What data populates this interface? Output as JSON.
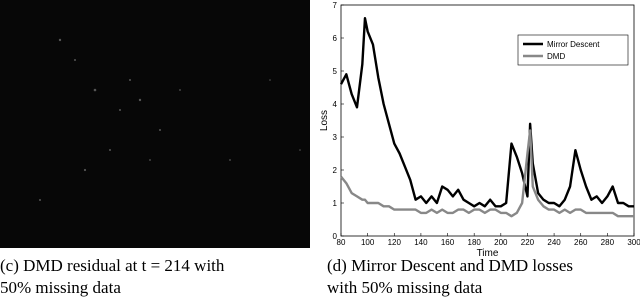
{
  "captions": {
    "left": [
      "(c) DMD residual at t = 214 with",
      "50% missing data"
    ],
    "right": [
      "(d) Mirror Descent and DMD losses",
      "with 50% missing data"
    ]
  },
  "chart_data": {
    "type": "line",
    "xlabel": "Time",
    "ylabel": "Loss",
    "x": [
      80,
      84,
      88,
      92,
      96,
      98,
      100,
      104,
      108,
      112,
      116,
      120,
      124,
      128,
      132,
      136,
      140,
      144,
      148,
      152,
      156,
      160,
      164,
      168,
      172,
      176,
      180,
      184,
      188,
      192,
      196,
      200,
      204,
      208,
      212,
      216,
      220,
      222,
      224,
      228,
      232,
      236,
      240,
      244,
      248,
      252,
      256,
      260,
      264,
      268,
      272,
      276,
      280,
      284,
      288,
      292,
      296,
      300
    ],
    "series": [
      {
        "name": "Mirror Descent",
        "color": "#000000",
        "values": [
          4.6,
          4.9,
          4.3,
          3.9,
          5.2,
          6.6,
          6.2,
          5.8,
          4.8,
          4.0,
          3.4,
          2.8,
          2.5,
          2.1,
          1.7,
          1.1,
          1.2,
          1.0,
          1.2,
          1.0,
          1.5,
          1.4,
          1.2,
          1.4,
          1.1,
          1.0,
          0.9,
          1.0,
          0.9,
          1.1,
          0.9,
          0.9,
          1.0,
          2.8,
          2.4,
          1.9,
          1.2,
          3.4,
          2.2,
          1.3,
          1.1,
          1.0,
          1.0,
          0.9,
          1.1,
          1.5,
          2.6,
          2.0,
          1.5,
          1.1,
          1.2,
          1.0,
          1.2,
          1.5,
          1.0,
          1.0,
          0.9,
          0.9
        ]
      },
      {
        "name": "DMD",
        "color": "#888888",
        "values": [
          1.8,
          1.6,
          1.3,
          1.2,
          1.1,
          1.1,
          1.0,
          1.0,
          1.0,
          0.9,
          0.9,
          0.8,
          0.8,
          0.8,
          0.8,
          0.8,
          0.7,
          0.7,
          0.8,
          0.7,
          0.8,
          0.7,
          0.7,
          0.8,
          0.8,
          0.7,
          0.8,
          0.8,
          0.7,
          0.8,
          0.8,
          0.7,
          0.7,
          0.6,
          0.7,
          1.0,
          2.5,
          3.2,
          1.5,
          1.1,
          0.9,
          0.8,
          0.8,
          0.7,
          0.8,
          0.7,
          0.8,
          0.8,
          0.7,
          0.7,
          0.7,
          0.7,
          0.7,
          0.7,
          0.6,
          0.6,
          0.6,
          0.6
        ]
      }
    ],
    "xlim": [
      80,
      300
    ],
    "xticks": [
      80,
      100,
      120,
      140,
      160,
      180,
      200,
      220,
      240,
      260,
      280,
      300
    ],
    "ylim": [
      0,
      7
    ],
    "yticks": [
      0,
      1,
      2,
      3,
      4,
      5,
      6,
      7
    ],
    "legend": "upper right"
  }
}
